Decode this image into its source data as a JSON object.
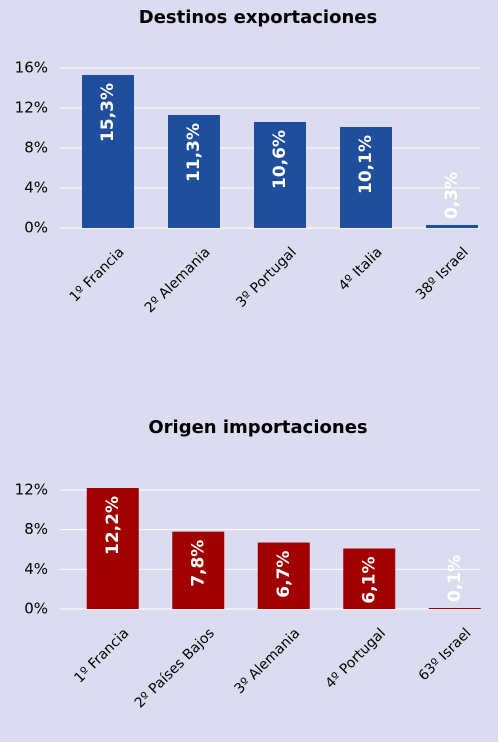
{
  "chart_data": [
    {
      "type": "bar",
      "title": "Destinos exportaciones",
      "categories": [
        "1º Francia",
        "2º Alemania",
        "3º Portugal",
        "4º Italia",
        "38º Israel"
      ],
      "values": [
        15.3,
        11.3,
        10.6,
        10.1,
        0.3
      ],
      "value_labels": [
        "15,3%",
        "11,3%",
        "10,6%",
        "10,1%",
        "0,3%"
      ],
      "color": "#1f4e9c",
      "ylim": [
        0,
        16
      ],
      "yticks": [
        {
          "value": 0,
          "label": "0%"
        },
        {
          "value": 4,
          "label": "4%"
        },
        {
          "value": 8,
          "label": "8%"
        },
        {
          "value": 12,
          "label": "12%"
        },
        {
          "value": 16,
          "label": "16%"
        }
      ],
      "grid": true
    },
    {
      "type": "bar",
      "title": "Origen importaciones",
      "categories": [
        "1º Francia",
        "2º Países Bajos",
        "3º Alemania",
        "4º Portugal",
        "63º Israel"
      ],
      "values": [
        12.2,
        7.8,
        6.7,
        6.1,
        0.1
      ],
      "value_labels": [
        "12,2%",
        "7,8%",
        "6,7%",
        "6,1%",
        "0,1%"
      ],
      "color": "#a00000",
      "ylim": [
        0,
        12
      ],
      "yticks": [
        {
          "value": 0,
          "label": "0%"
        },
        {
          "value": 4,
          "label": "4%"
        },
        {
          "value": 8,
          "label": "8%"
        },
        {
          "value": 12,
          "label": "12%"
        }
      ],
      "grid": true
    }
  ]
}
